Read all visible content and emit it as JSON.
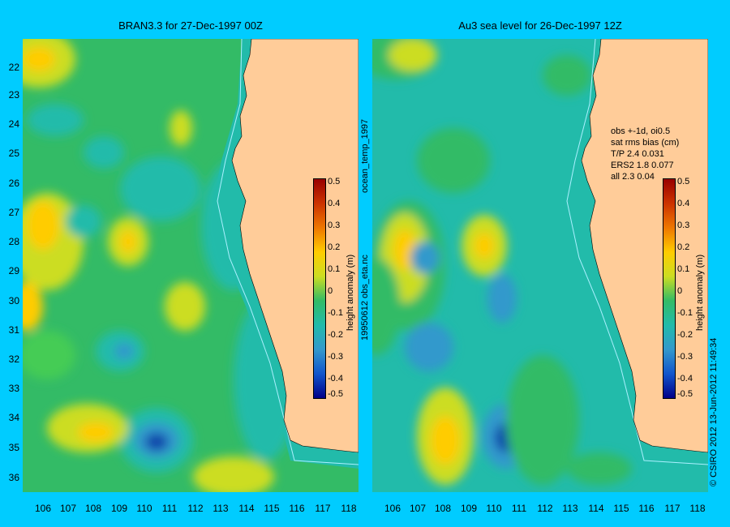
{
  "left_panel": {
    "title": "BRAN3.3 for 27-Dec-1997 00Z",
    "side_label_1": "ocean_temp_1997",
    "side_label_2": "19950612 obs_eta.nc"
  },
  "right_panel": {
    "title": "Au3 sea level  for 26-Dec-1997 12Z",
    "stats_lines": [
      "obs +-1d, oi0.5",
      "sat rms bias (cm)",
      "T/P  2.4 0.031",
      "ERS2 1.8 0.077",
      "all 2.3 0.04"
    ]
  },
  "colorbar": {
    "label": "height anomaly (m)",
    "ticks": [
      "0.5",
      "0.4",
      "0.3",
      "0.2",
      "0.1",
      "0",
      "-0.1",
      "-0.2",
      "-0.3",
      "-0.4",
      "-0.5"
    ]
  },
  "copyright": "© CSIRO 2012   13-Jun-2012 11:49:34",
  "map": {
    "lat_ticks": [
      "22",
      "23",
      "24",
      "25",
      "26",
      "27",
      "28",
      "29",
      "30",
      "31",
      "32",
      "33",
      "34",
      "35",
      "36"
    ],
    "lon_ticks": [
      "106",
      "107",
      "108",
      "109",
      "110",
      "111",
      "112",
      "113",
      "114",
      "115",
      "116",
      "117",
      "118"
    ],
    "land_color": "#ffcc99",
    "background_color": "#00ccff"
  }
}
